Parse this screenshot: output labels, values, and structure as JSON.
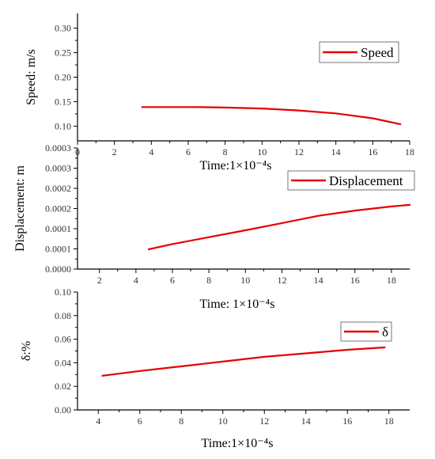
{
  "colors": {
    "series": "#e60000",
    "axis": "#000000"
  },
  "chart_data": [
    {
      "type": "line",
      "xlim": [
        0,
        18
      ],
      "ylim": [
        0.07,
        0.33
      ],
      "xticks": [
        0,
        2,
        4,
        6,
        8,
        10,
        12,
        14,
        16,
        18
      ],
      "yticks": [
        0.1,
        0.15,
        0.2,
        0.25,
        0.3
      ],
      "xtick_labels": [
        "0",
        "2",
        "4",
        "6",
        "8",
        "10",
        "12",
        "14",
        "16",
        "18"
      ],
      "ytick_labels": [
        "0.10",
        "0.15",
        "0.20",
        "0.25",
        "0.30"
      ],
      "ylabel": "Speed: m/s",
      "xlabel": "Time:1×10⁻⁴s",
      "legend": "top-right",
      "series": [
        {
          "name": "Speed",
          "x": [
            3.5,
            5,
            6.5,
            8,
            10,
            12,
            14,
            16,
            17.5
          ],
          "y": [
            0.139,
            0.139,
            0.139,
            0.138,
            0.136,
            0.132,
            0.126,
            0.116,
            0.104
          ]
        }
      ]
    },
    {
      "type": "line",
      "xlim": [
        0.8,
        19
      ],
      "ylim": [
        0,
        0.0003
      ],
      "xticks": [
        2,
        4,
        6,
        8,
        10,
        12,
        14,
        16,
        18
      ],
      "yticks": [
        0,
        5e-05,
        0.0001,
        0.00015,
        0.0002,
        0.00025,
        0.0003
      ],
      "xtick_labels": [
        "2",
        "4",
        "6",
        "8",
        "10",
        "12",
        "14",
        "16",
        "18"
      ],
      "ytick_labels": [
        "0.0000",
        "0.0001",
        "0.0001",
        "0.0002",
        "0.0002",
        "0.0003",
        "0.0003"
      ],
      "ylabel": "Displacement: m",
      "xlabel": "Time:  1×10⁻⁴s",
      "legend": "top-right",
      "series": [
        {
          "name": "Displacement",
          "x": [
            4.7,
            6,
            8,
            10,
            12,
            14,
            16,
            18,
            19
          ],
          "y": [
            4.9e-05,
            6.2e-05,
            7.9e-05,
            9.6e-05,
            0.000114,
            0.000132,
            0.000145,
            0.000155,
            0.000159
          ]
        }
      ]
    },
    {
      "type": "line",
      "xlim": [
        3,
        19
      ],
      "ylim": [
        0,
        0.1
      ],
      "xticks": [
        4,
        6,
        8,
        10,
        12,
        14,
        16,
        18
      ],
      "yticks": [
        0,
        0.02,
        0.04,
        0.06,
        0.08,
        0.1
      ],
      "xtick_labels": [
        "4",
        "6",
        "8",
        "10",
        "12",
        "14",
        "16",
        "18"
      ],
      "ytick_labels": [
        "0.00",
        "0.02",
        "0.04",
        "0.06",
        "0.08",
        "0.10"
      ],
      "ylabel": "δ:%",
      "xlabel": "Time:1×10⁻⁴s",
      "legend": "top-right",
      "series": [
        {
          "name": "δ",
          "x": [
            4.2,
            6,
            8,
            10,
            12,
            14,
            16,
            17.8
          ],
          "y": [
            0.029,
            0.033,
            0.037,
            0.041,
            0.045,
            0.048,
            0.051,
            0.053
          ]
        }
      ]
    }
  ]
}
